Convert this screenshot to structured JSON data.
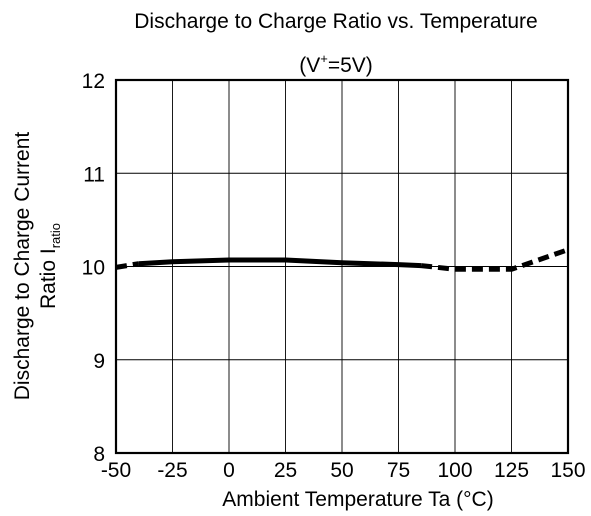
{
  "chart_data": {
    "type": "line",
    "title": "Discharge to Charge Ratio vs. Temperature",
    "subtitle": {
      "prefix": "(V",
      "superscript": "+",
      "suffix": "=5V)"
    },
    "xlabel": "Ambient Temperature Ta  (°C)",
    "ylabel": {
      "line1": "Discharge to Charge Current",
      "line2_prefix": "Ratio   I",
      "line2_subscript": "ratio"
    },
    "xlim": [
      -50,
      150
    ],
    "ylim": [
      8,
      12
    ],
    "x_ticks": [
      "-50",
      "-25",
      "0",
      "25",
      "50",
      "75",
      "100",
      "125",
      "150"
    ],
    "y_ticks": [
      "8",
      "9",
      "10",
      "11",
      "12"
    ],
    "grid": true,
    "series": [
      {
        "style": "solid",
        "x": [
          -40,
          -25,
          0,
          25,
          50,
          75,
          85
        ],
        "y": [
          10.03,
          10.05,
          10.07,
          10.07,
          10.04,
          10.02,
          10.01
        ]
      },
      {
        "style": "dashed",
        "x": [
          -50,
          -40
        ],
        "y": [
          9.99,
          10.03
        ]
      },
      {
        "style": "dashed",
        "x": [
          85,
          100,
          125,
          150
        ],
        "y": [
          10.01,
          9.97,
          9.97,
          10.18
        ]
      }
    ],
    "colors": {
      "line": "#000000",
      "grid": "#000000"
    }
  }
}
